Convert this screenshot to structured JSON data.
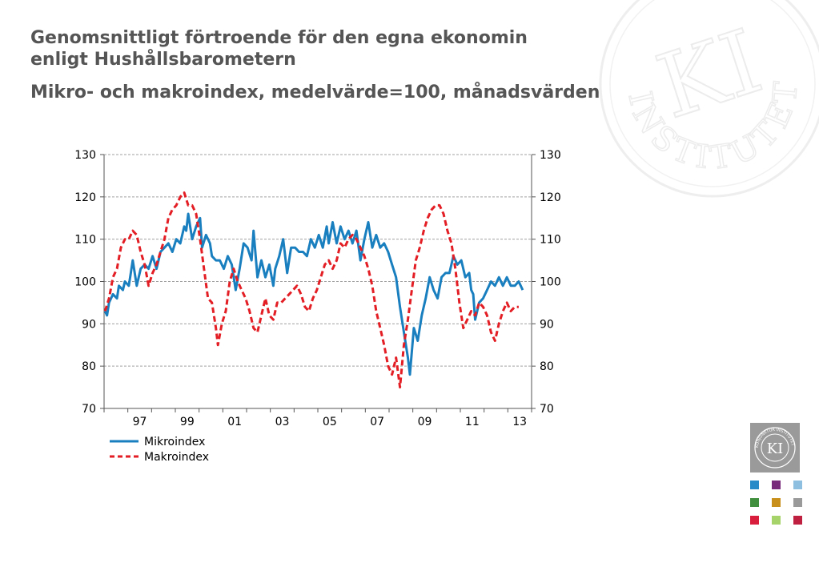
{
  "header": {
    "title": "Genomsnittligt förtroende för den egna ekonomin enligt Hushållsbarometern",
    "subtitle": "Mikro- och makroindex, medelvärde=100, månadsvärden"
  },
  "branding": {
    "watermark_text": "INSTITUTET",
    "logo_text": "KI",
    "logo_ring_text": "KONJUNKTUR INSTITUTET"
  },
  "colors": {
    "title": "#555555",
    "mikro": "#1a7fbf",
    "makro": "#e31e24",
    "logo_bg": "#9a9a9a",
    "tiles": [
      "#2a8bc9",
      "#7a2a7a",
      "#8fbfe0",
      "#3f8f3f",
      "#c8901a",
      "#9a9a9a",
      "#d81e3c",
      "#a6d36a",
      "#c02040"
    ]
  },
  "chart_data": {
    "type": "line",
    "title": "",
    "xlabel": "",
    "ylabel": "",
    "x_start": "1996-01",
    "x_end": "2013-12",
    "x_ticks": [
      {
        "label": "97",
        "year": 1997
      },
      {
        "label": "99",
        "year": 1999
      },
      {
        "label": "01",
        "year": 2001
      },
      {
        "label": "03",
        "year": 2003
      },
      {
        "label": "05",
        "year": 2005
      },
      {
        "label": "07",
        "year": 2007
      },
      {
        "label": "09",
        "year": 2009
      },
      {
        "label": "11",
        "year": 2011
      },
      {
        "label": "13",
        "year": 2013
      }
    ],
    "ylim": [
      70,
      130
    ],
    "y_ticks": [
      "70",
      "80",
      "90",
      "100",
      "110",
      "120",
      "130"
    ],
    "grid": true,
    "legend_position": "bottom-left",
    "series": [
      {
        "name": "Mikroindex",
        "style": "solid",
        "points": [
          [
            "1996-01",
            93
          ],
          [
            "1996-02",
            92
          ],
          [
            "1996-03",
            95
          ],
          [
            "1996-05",
            97
          ],
          [
            "1996-07",
            96
          ],
          [
            "1996-08",
            99
          ],
          [
            "1996-10",
            98
          ],
          [
            "1996-11",
            100
          ],
          [
            "1997-01",
            99
          ],
          [
            "1997-02",
            102
          ],
          [
            "1997-03",
            105
          ],
          [
            "1997-05",
            99
          ],
          [
            "1997-07",
            103
          ],
          [
            "1997-09",
            104
          ],
          [
            "1997-11",
            103
          ],
          [
            "1998-01",
            106
          ],
          [
            "1998-03",
            103
          ],
          [
            "1998-05",
            107
          ],
          [
            "1998-07",
            108
          ],
          [
            "1998-09",
            109
          ],
          [
            "1998-11",
            107
          ],
          [
            "1999-01",
            110
          ],
          [
            "1999-03",
            109
          ],
          [
            "1999-05",
            113
          ],
          [
            "1999-06",
            112
          ],
          [
            "1999-07",
            116
          ],
          [
            "1999-09",
            110
          ],
          [
            "1999-11",
            113
          ],
          [
            "2000-01",
            115
          ],
          [
            "2000-02",
            108
          ],
          [
            "2000-04",
            111
          ],
          [
            "2000-06",
            109
          ],
          [
            "2000-07",
            106
          ],
          [
            "2000-09",
            105
          ],
          [
            "2000-11",
            105
          ],
          [
            "2001-01",
            103
          ],
          [
            "2001-03",
            106
          ],
          [
            "2001-05",
            104
          ],
          [
            "2001-07",
            98
          ],
          [
            "2001-09",
            103
          ],
          [
            "2001-11",
            109
          ],
          [
            "2002-01",
            108
          ],
          [
            "2002-03",
            105
          ],
          [
            "2002-04",
            112
          ],
          [
            "2002-06",
            101
          ],
          [
            "2002-08",
            105
          ],
          [
            "2002-10",
            101
          ],
          [
            "2002-12",
            104
          ],
          [
            "2003-02",
            99
          ],
          [
            "2003-03",
            103
          ],
          [
            "2003-05",
            106
          ],
          [
            "2003-07",
            110
          ],
          [
            "2003-09",
            102
          ],
          [
            "2003-11",
            108
          ],
          [
            "2004-01",
            108
          ],
          [
            "2004-03",
            107
          ],
          [
            "2004-05",
            107
          ],
          [
            "2004-07",
            106
          ],
          [
            "2004-09",
            110
          ],
          [
            "2004-11",
            108
          ],
          [
            "2005-01",
            111
          ],
          [
            "2005-03",
            108
          ],
          [
            "2005-05",
            113
          ],
          [
            "2005-06",
            109
          ],
          [
            "2005-08",
            114
          ],
          [
            "2005-10",
            109
          ],
          [
            "2005-12",
            113
          ],
          [
            "2006-02",
            110
          ],
          [
            "2006-04",
            112
          ],
          [
            "2006-06",
            109
          ],
          [
            "2006-08",
            112
          ],
          [
            "2006-10",
            105
          ],
          [
            "2006-12",
            110
          ],
          [
            "2007-02",
            114
          ],
          [
            "2007-04",
            108
          ],
          [
            "2007-06",
            111
          ],
          [
            "2007-08",
            108
          ],
          [
            "2007-10",
            109
          ],
          [
            "2007-12",
            107
          ],
          [
            "2008-02",
            104
          ],
          [
            "2008-04",
            101
          ],
          [
            "2008-06",
            94
          ],
          [
            "2008-08",
            88
          ],
          [
            "2008-10",
            82
          ],
          [
            "2008-11",
            78
          ],
          [
            "2009-01",
            89
          ],
          [
            "2009-03",
            86
          ],
          [
            "2009-05",
            92
          ],
          [
            "2009-07",
            96
          ],
          [
            "2009-09",
            101
          ],
          [
            "2009-11",
            98
          ],
          [
            "2010-01",
            96
          ],
          [
            "2010-03",
            101
          ],
          [
            "2010-05",
            102
          ],
          [
            "2010-07",
            102
          ],
          [
            "2010-09",
            106
          ],
          [
            "2010-11",
            104
          ],
          [
            "2011-01",
            105
          ],
          [
            "2011-03",
            101
          ],
          [
            "2011-05",
            102
          ],
          [
            "2011-06",
            98
          ],
          [
            "2011-07",
            97
          ],
          [
            "2011-08",
            91
          ],
          [
            "2011-10",
            95
          ],
          [
            "2011-12",
            96
          ],
          [
            "2012-02",
            98
          ],
          [
            "2012-04",
            100
          ],
          [
            "2012-06",
            99
          ],
          [
            "2012-08",
            101
          ],
          [
            "2012-10",
            99
          ],
          [
            "2012-12",
            101
          ],
          [
            "2013-02",
            99
          ],
          [
            "2013-04",
            99
          ],
          [
            "2013-06",
            100
          ],
          [
            "2013-08",
            98
          ]
        ]
      },
      {
        "name": "Makroindex",
        "style": "dashed",
        "points": [
          [
            "1996-01",
            93
          ],
          [
            "1996-03",
            96
          ],
          [
            "1996-05",
            101
          ],
          [
            "1996-07",
            103
          ],
          [
            "1996-09",
            108
          ],
          [
            "1996-11",
            110
          ],
          [
            "1997-01",
            110
          ],
          [
            "1997-03",
            112
          ],
          [
            "1997-05",
            111
          ],
          [
            "1997-07",
            107
          ],
          [
            "1997-09",
            104
          ],
          [
            "1997-11",
            99
          ],
          [
            "1998-01",
            102
          ],
          [
            "1998-03",
            104
          ],
          [
            "1998-05",
            107
          ],
          [
            "1998-07",
            110
          ],
          [
            "1998-09",
            115
          ],
          [
            "1998-11",
            117
          ],
          [
            "1999-01",
            118
          ],
          [
            "1999-03",
            120
          ],
          [
            "1999-05",
            121
          ],
          [
            "1999-07",
            118
          ],
          [
            "1999-09",
            118
          ],
          [
            "1999-11",
            116
          ],
          [
            "2000-01",
            110
          ],
          [
            "2000-03",
            103
          ],
          [
            "2000-05",
            96
          ],
          [
            "2000-07",
            95
          ],
          [
            "2000-09",
            89
          ],
          [
            "2000-10",
            85
          ],
          [
            "2000-12",
            90
          ],
          [
            "2001-02",
            93
          ],
          [
            "2001-04",
            100
          ],
          [
            "2001-06",
            103
          ],
          [
            "2001-08",
            100
          ],
          [
            "2001-10",
            98
          ],
          [
            "2001-12",
            96
          ],
          [
            "2002-02",
            93
          ],
          [
            "2002-04",
            89
          ],
          [
            "2002-06",
            88
          ],
          [
            "2002-08",
            92
          ],
          [
            "2002-10",
            96
          ],
          [
            "2002-12",
            92
          ],
          [
            "2003-02",
            91
          ],
          [
            "2003-04",
            95
          ],
          [
            "2003-06",
            95
          ],
          [
            "2003-08",
            96
          ],
          [
            "2003-10",
            97
          ],
          [
            "2003-12",
            98
          ],
          [
            "2004-02",
            99
          ],
          [
            "2004-04",
            97
          ],
          [
            "2004-06",
            94
          ],
          [
            "2004-08",
            93
          ],
          [
            "2004-10",
            96
          ],
          [
            "2004-12",
            98
          ],
          [
            "2005-02",
            101
          ],
          [
            "2005-04",
            104
          ],
          [
            "2005-06",
            105
          ],
          [
            "2005-08",
            103
          ],
          [
            "2005-10",
            105
          ],
          [
            "2005-12",
            109
          ],
          [
            "2006-02",
            108
          ],
          [
            "2006-04",
            110
          ],
          [
            "2006-06",
            111
          ],
          [
            "2006-08",
            110
          ],
          [
            "2006-10",
            108
          ],
          [
            "2006-12",
            106
          ],
          [
            "2007-02",
            103
          ],
          [
            "2007-04",
            99
          ],
          [
            "2007-06",
            93
          ],
          [
            "2007-08",
            89
          ],
          [
            "2007-10",
            85
          ],
          [
            "2007-12",
            80
          ],
          [
            "2008-02",
            78
          ],
          [
            "2008-04",
            82
          ],
          [
            "2008-06",
            75
          ],
          [
            "2008-08",
            85
          ],
          [
            "2008-10",
            91
          ],
          [
            "2008-12",
            98
          ],
          [
            "2009-02",
            105
          ],
          [
            "2009-04",
            108
          ],
          [
            "2009-06",
            112
          ],
          [
            "2009-08",
            115
          ],
          [
            "2009-10",
            117
          ],
          [
            "2009-12",
            118
          ],
          [
            "2010-02",
            118
          ],
          [
            "2010-04",
            116
          ],
          [
            "2010-06",
            112
          ],
          [
            "2010-08",
            109
          ],
          [
            "2010-10",
            103
          ],
          [
            "2010-12",
            95
          ],
          [
            "2011-02",
            89
          ],
          [
            "2011-04",
            91
          ],
          [
            "2011-06",
            93
          ],
          [
            "2011-08",
            92
          ],
          [
            "2011-10",
            95
          ],
          [
            "2011-12",
            94
          ],
          [
            "2012-02",
            92
          ],
          [
            "2012-04",
            88
          ],
          [
            "2012-06",
            86
          ],
          [
            "2012-08",
            90
          ],
          [
            "2012-10",
            93
          ],
          [
            "2012-12",
            95
          ],
          [
            "2013-02",
            93
          ],
          [
            "2013-04",
            94
          ],
          [
            "2013-06",
            94
          ]
        ]
      }
    ]
  }
}
